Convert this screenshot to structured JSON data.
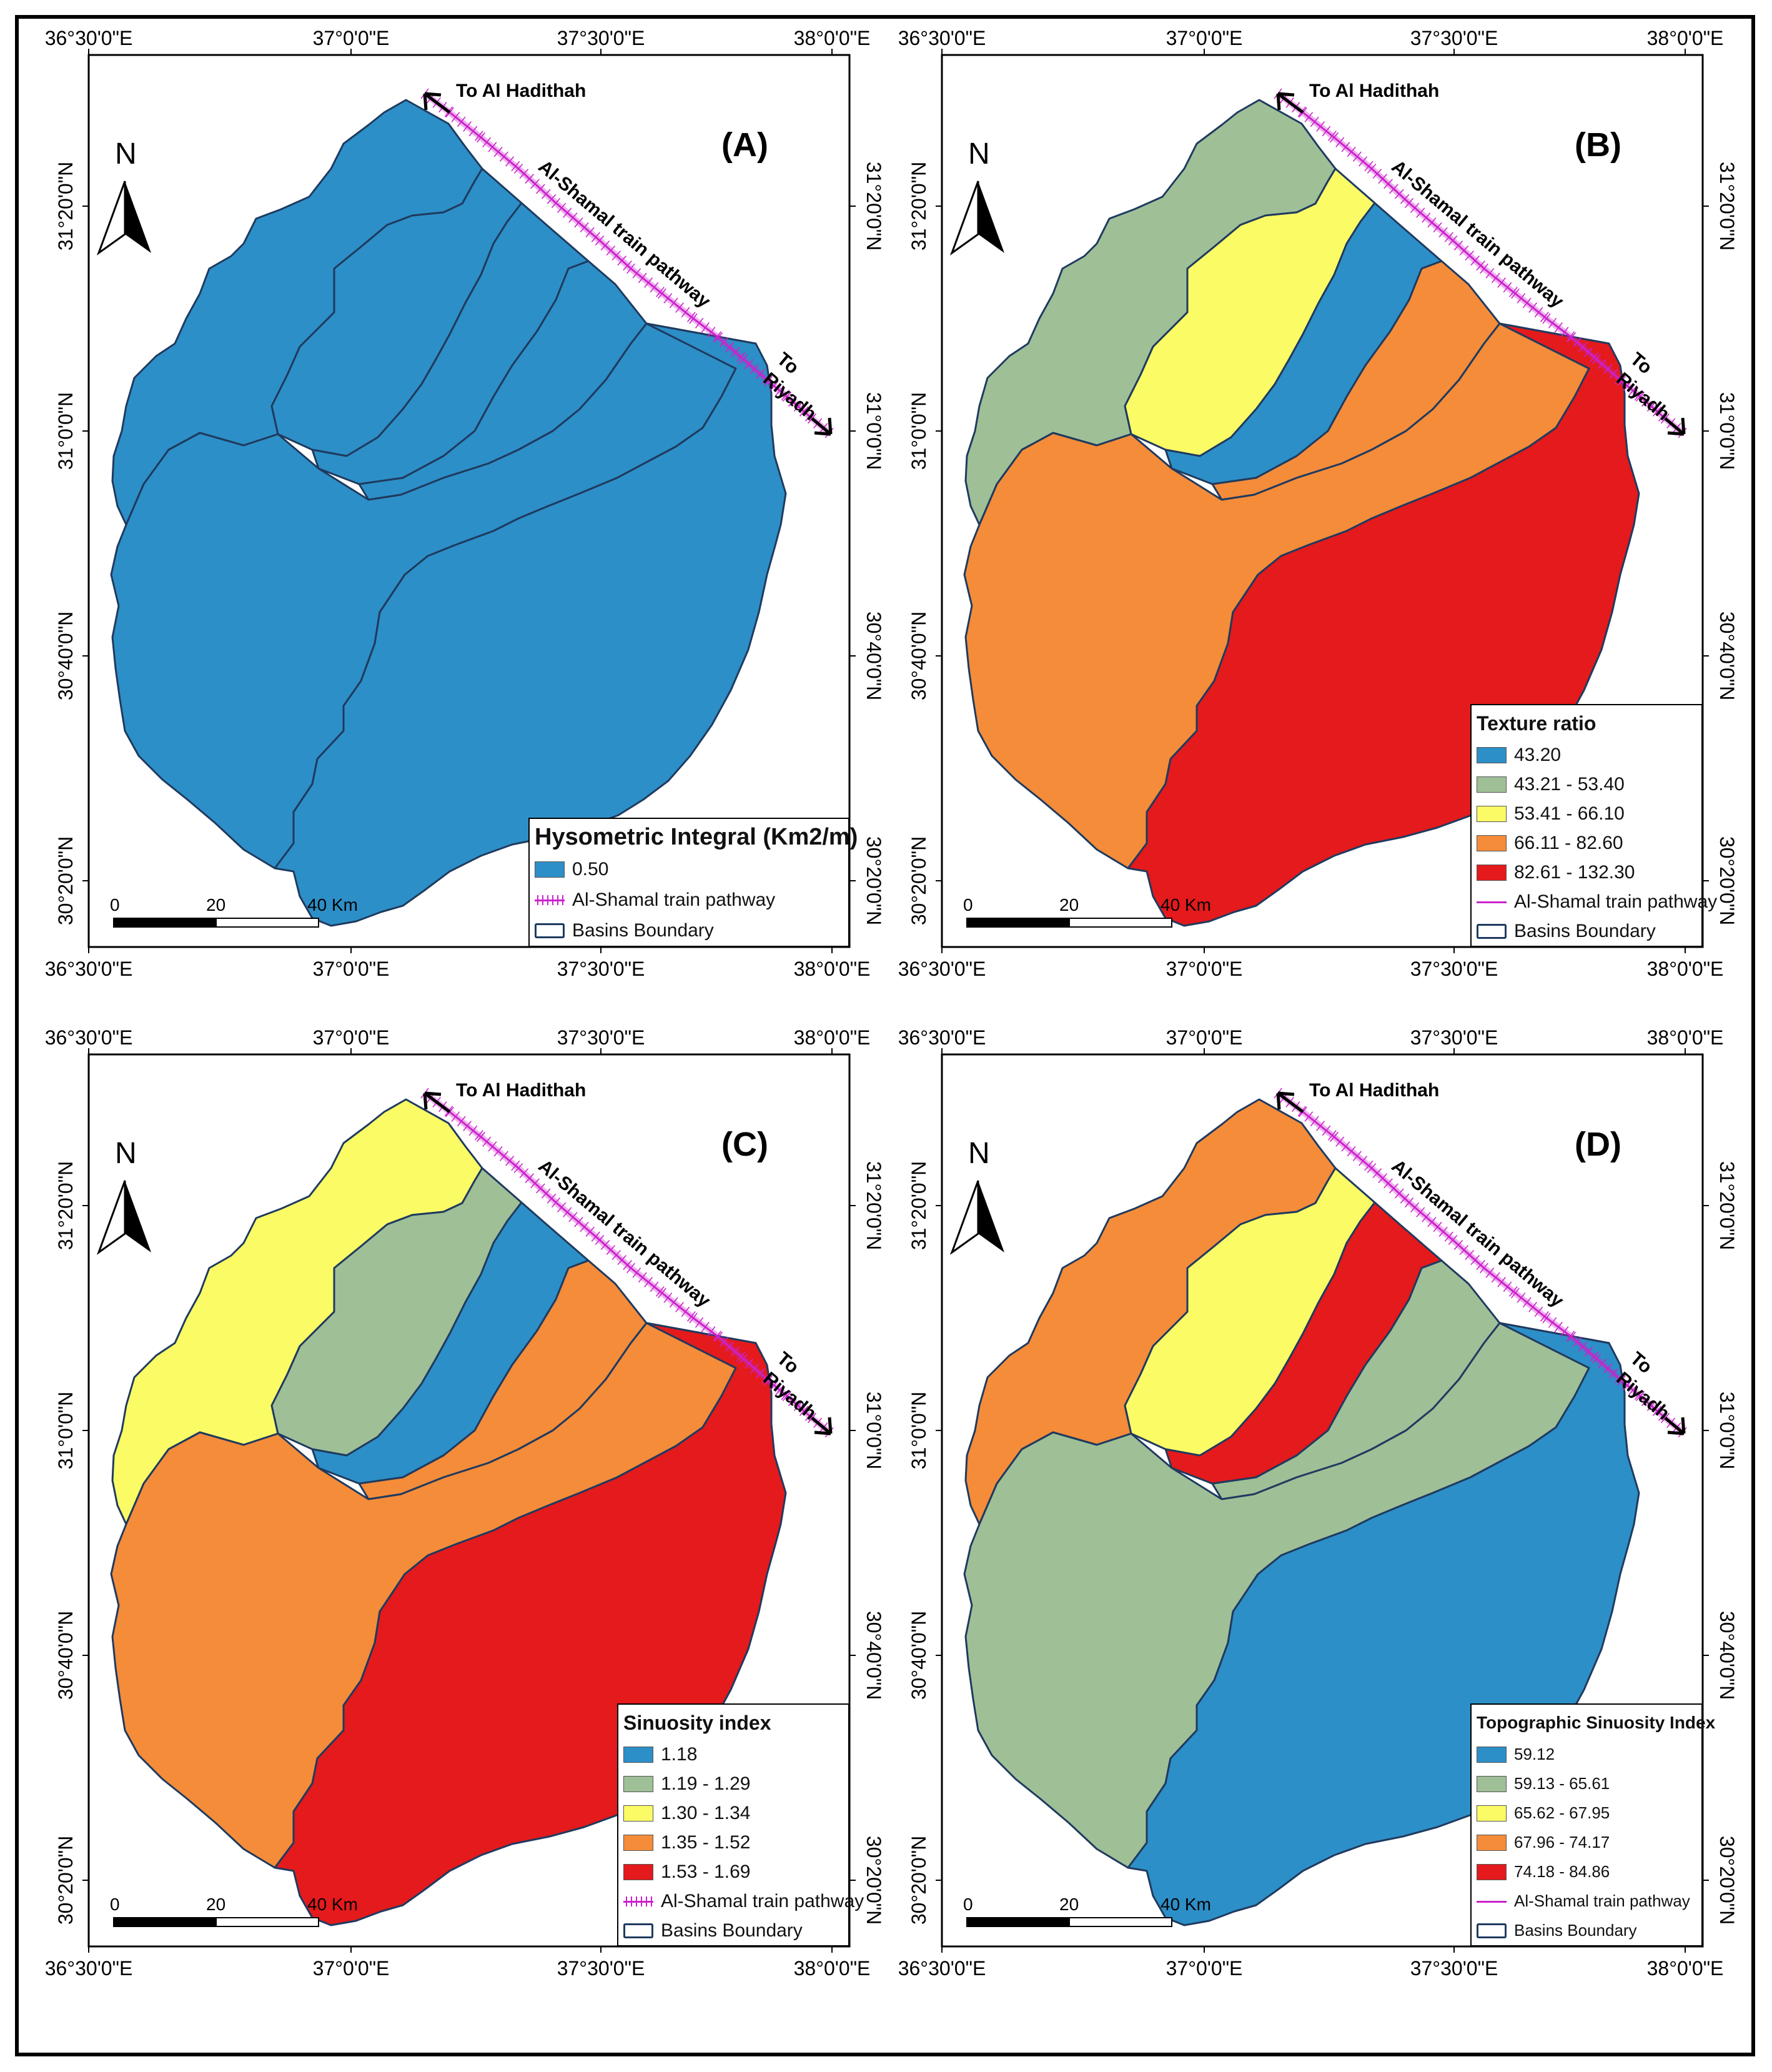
{
  "ticks": {
    "top": [
      "36°30'0\"E",
      "37°0'0\"E",
      "37°30'0\"E",
      "38°0'0\"E"
    ],
    "bottom": [
      "36°30'0\"E",
      "37°0'0\"E",
      "37°30'0\"E",
      "38°0'0\"E"
    ],
    "left": [
      "31°20'0\"N",
      "31°0'0\"N",
      "30°40'0\"N",
      "30°20'0\"N"
    ],
    "right": [
      "31°20'0\"N",
      "31°0'0\"N",
      "30°40'0\"N",
      "30°20'0\"N"
    ]
  },
  "north_label": "N",
  "route_labels": {
    "start": "To Al Hadithah",
    "mid": "Al-Shamal train pathway",
    "end_1": "To",
    "end_2": "Riyadh"
  },
  "scale_bar": {
    "labels": [
      "0",
      "20",
      "40 Km"
    ]
  },
  "colors": {
    "blue": "#2d8fc7",
    "green": "#9fbf97",
    "yellow": "#fbfb66",
    "orange": "#f48c3a",
    "red": "#e41a1c",
    "rail": "#cc22cc",
    "boundary": "#1f3a5f"
  },
  "panels": [
    {
      "label": "(A)",
      "legend_title": "Hysometric Integral (Km2/m)",
      "classes": [
        {
          "label": "0.50",
          "color": "#2d8fc7"
        }
      ],
      "rail_label": "Al-Shamal train pathway",
      "boundary_label": "Basins Boundary",
      "basin_colors": [
        "#2d8fc7",
        "#2d8fc7",
        "#2d8fc7",
        "#2d8fc7",
        "#2d8fc7",
        "#2d8fc7"
      ]
    },
    {
      "label": "(B)",
      "legend_title": "Texture ratio",
      "classes": [
        {
          "label": "43.20",
          "color": "#2d8fc7"
        },
        {
          "label": "43.21 - 53.40",
          "color": "#9fbf97"
        },
        {
          "label": "53.41 - 66.10",
          "color": "#fbfb66"
        },
        {
          "label": "66.11 - 82.60",
          "color": "#f48c3a"
        },
        {
          "label": "82.61 - 132.30",
          "color": "#e41a1c"
        }
      ],
      "rail_label": "Al-Shamal train pathway",
      "boundary_label": "Basins Boundary",
      "basin_colors": [
        "#9fbf97",
        "#fbfb66",
        "#2d8fc7",
        "#f48c3a",
        "#f48c3a",
        "#e41a1c"
      ]
    },
    {
      "label": "(C)",
      "legend_title": "Sinuosity index",
      "classes": [
        {
          "label": "1.18",
          "color": "#2d8fc7"
        },
        {
          "label": "1.19 - 1.29",
          "color": "#9fbf97"
        },
        {
          "label": "1.30 - 1.34",
          "color": "#fbfb66"
        },
        {
          "label": "1.35 - 1.52",
          "color": "#f48c3a"
        },
        {
          "label": "1.53 - 1.69",
          "color": "#e41a1c"
        }
      ],
      "rail_label": "Al-Shamal train pathway",
      "boundary_label": "Basins Boundary",
      "basin_colors": [
        "#fbfb66",
        "#9fbf97",
        "#2d8fc7",
        "#f48c3a",
        "#f48c3a",
        "#e41a1c"
      ]
    },
    {
      "label": "(D)",
      "legend_title": "Topographic Sinuosity Index",
      "classes": [
        {
          "label": "59.12",
          "color": "#2d8fc7"
        },
        {
          "label": "59.13 - 65.61",
          "color": "#9fbf97"
        },
        {
          "label": "65.62 - 67.95",
          "color": "#fbfb66"
        },
        {
          "label": "67.96 - 74.17",
          "color": "#f48c3a"
        },
        {
          "label": "74.18 - 84.86",
          "color": "#e41a1c"
        }
      ],
      "rail_label": "Al-Shamal train pathway",
      "boundary_label": "Basins Boundary",
      "basin_colors": [
        "#f48c3a",
        "#fbfb66",
        "#e41a1c",
        "#9fbf97",
        "#9fbf97",
        "#2d8fc7"
      ]
    }
  ]
}
